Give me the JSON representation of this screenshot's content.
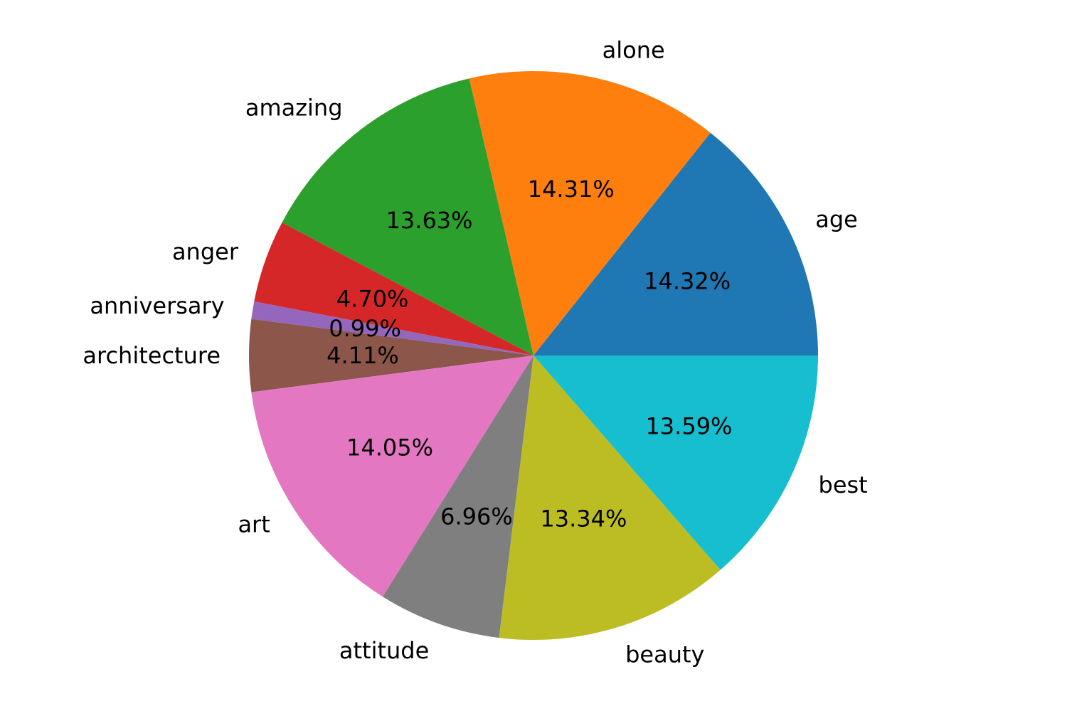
{
  "chart_data": {
    "type": "pie",
    "title": "",
    "start_angle_deg": 0,
    "direction": "counterclockwise",
    "slices": [
      {
        "label": "age",
        "value": 14.32,
        "pct_label": "14.32%",
        "color": "#1f77b4"
      },
      {
        "label": "alone",
        "value": 14.31,
        "pct_label": "14.31%",
        "color": "#ff7f0e"
      },
      {
        "label": "amazing",
        "value": 13.63,
        "pct_label": "13.63%",
        "color": "#2ca02c"
      },
      {
        "label": "anger",
        "value": 4.7,
        "pct_label": "4.70%",
        "color": "#d62728"
      },
      {
        "label": "anniversary",
        "value": 0.99,
        "pct_label": "0.99%",
        "color": "#9467bd"
      },
      {
        "label": "architecture",
        "value": 4.11,
        "pct_label": "4.11%",
        "color": "#8c564b"
      },
      {
        "label": "art",
        "value": 14.05,
        "pct_label": "14.05%",
        "color": "#e377c2"
      },
      {
        "label": "attitude",
        "value": 6.96,
        "pct_label": "6.96%",
        "color": "#7f7f7f"
      },
      {
        "label": "beauty",
        "value": 13.34,
        "pct_label": "13.34%",
        "color": "#bcbd22"
      },
      {
        "label": "best",
        "value": 13.59,
        "pct_label": "13.59%",
        "color": "#17becf"
      }
    ]
  }
}
